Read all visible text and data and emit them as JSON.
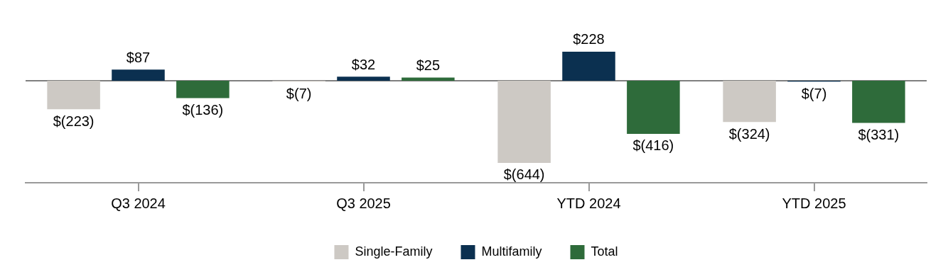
{
  "chart_data": {
    "type": "bar",
    "categories": [
      "Q3 2024",
      "Q3 2025",
      "YTD 2024",
      "YTD 2025"
    ],
    "series": [
      {
        "name": "Single-Family",
        "color": "#cdc9c4",
        "values": [
          -223,
          -7,
          -644,
          -324
        ],
        "value_labels": [
          "$(223)",
          "$(7)",
          "$(644)",
          "$(324)"
        ]
      },
      {
        "name": "Multifamily",
        "color": "#0b3050",
        "values": [
          87,
          32,
          228,
          -7
        ],
        "value_labels": [
          "$87",
          "$32",
          "$228",
          "$(7)"
        ]
      },
      {
        "name": "Total",
        "color": "#2e6b3a",
        "values": [
          -136,
          25,
          -416,
          -331
        ],
        "value_labels": [
          "$(136)",
          "$25",
          "$(416)",
          "$(331)"
        ]
      }
    ],
    "ref_lines": [
      {
        "axis": "y",
        "value": 0,
        "color": "#7f7f7f"
      }
    ],
    "tick_labels": "x",
    "grid": false,
    "legend": "bottom"
  }
}
